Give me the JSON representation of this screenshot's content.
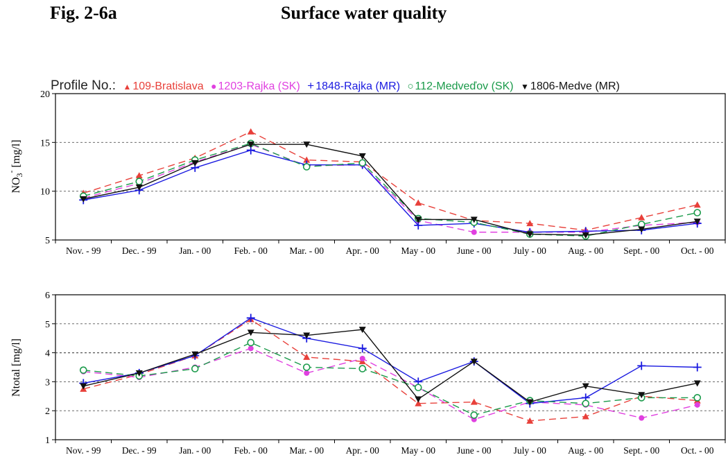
{
  "figure_label": "Fig. 2-6a",
  "figure_title": "Surface water quality",
  "legend": {
    "prefix": "Profile No.:",
    "entries": [
      {
        "label": "109-Bratislava",
        "marker": "▲",
        "color": "#e8403a"
      },
      {
        "label": "1203-Rajka (SK)",
        "marker": "●",
        "color": "#e040e0"
      },
      {
        "label": "1848-Rajka (MR)",
        "marker": "+",
        "color": "#1a1ae0"
      },
      {
        "label": "112-Medveďov (SK)",
        "marker": "○",
        "color": "#1a9a4a"
      },
      {
        "label": "1806-Medve (MR)",
        "marker": "▼",
        "color": "#111111"
      }
    ]
  },
  "chart_data": [
    {
      "type": "line",
      "ylabel_main": "NO",
      "ylabel_sub": "3",
      "ylabel_sup": "-",
      "ylabel_unit": "[mg/l]",
      "ylim": [
        5,
        20
      ],
      "yticks": [
        "5",
        "10",
        "15",
        "20"
      ],
      "grid": "dotted horizontal at 10 and 15",
      "categories": [
        "Nov. - 99",
        "Dec. - 99",
        "Jan. - 00",
        "Feb. - 00",
        "Mar. - 00",
        "Apr. - 00",
        "May - 00",
        "June - 00",
        "July - 00",
        "Aug. - 00",
        "Sept. - 00",
        "Oct. - 00"
      ],
      "series": [
        {
          "name": "109-Bratislava",
          "values": [
            9.8,
            11.6,
            13.4,
            16.1,
            13.2,
            13.0,
            8.8,
            7.0,
            6.7,
            6.0,
            7.3,
            8.6
          ]
        },
        {
          "name": "1203-Rajka (SK)",
          "values": [
            9.3,
            10.8,
            13.0,
            14.8,
            12.6,
            12.7,
            7.0,
            5.8,
            5.8,
            5.8,
            6.5,
            6.8
          ]
        },
        {
          "name": "1848-Rajka (MR)",
          "values": [
            9.1,
            10.1,
            12.4,
            14.2,
            12.7,
            12.7,
            6.5,
            6.7,
            5.8,
            5.9,
            6.0,
            6.7
          ]
        },
        {
          "name": "112-Medveďov (SK)",
          "values": [
            9.5,
            11.0,
            13.2,
            14.9,
            12.5,
            12.9,
            7.2,
            6.8,
            5.6,
            5.4,
            6.6,
            7.8
          ]
        },
        {
          "name": "1806-Medve (MR)",
          "values": [
            9.2,
            10.4,
            12.9,
            14.8,
            14.8,
            13.6,
            7.1,
            7.1,
            5.6,
            5.5,
            6.1,
            6.9
          ]
        }
      ]
    },
    {
      "type": "line",
      "ylabel": "Ntotal [mg/l]",
      "ylim": [
        1,
        6
      ],
      "yticks": [
        "1",
        "2",
        "3",
        "4",
        "5",
        "6"
      ],
      "grid": "dotted horizontal at 2, 3, 4, 5",
      "categories": [
        "Nov. - 99",
        "Dec. - 99",
        "Jan. - 00",
        "Feb. - 00",
        "Mar. - 00",
        "Apr. - 00",
        "May - 00",
        "June - 00",
        "July - 00",
        "Aug. - 00",
        "Sept. - 00",
        "Oct. - 00"
      ],
      "series": [
        {
          "name": "109-Bratislava",
          "values": [
            2.75,
            3.25,
            3.9,
            5.15,
            3.85,
            3.7,
            2.25,
            2.3,
            1.65,
            1.8,
            2.5,
            2.35
          ]
        },
        {
          "name": "1203-Rajka (SK)",
          "values": [
            3.35,
            3.15,
            3.5,
            4.15,
            3.3,
            3.8,
            2.8,
            1.7,
            2.3,
            2.2,
            1.75,
            2.2
          ]
        },
        {
          "name": "1848-Rajka (MR)",
          "values": [
            2.95,
            3.3,
            3.9,
            5.2,
            4.5,
            4.15,
            3.0,
            3.7,
            2.25,
            2.45,
            3.55,
            3.5
          ]
        },
        {
          "name": "112-Medveďov (SK)",
          "values": [
            3.4,
            3.2,
            3.45,
            4.35,
            3.5,
            3.45,
            2.8,
            1.85,
            2.35,
            2.25,
            2.45,
            2.45
          ]
        },
        {
          "name": "1806-Medve (MR)",
          "values": [
            2.85,
            3.3,
            3.95,
            4.7,
            4.6,
            4.8,
            2.4,
            3.7,
            2.3,
            2.85,
            2.55,
            2.95
          ]
        }
      ]
    }
  ]
}
